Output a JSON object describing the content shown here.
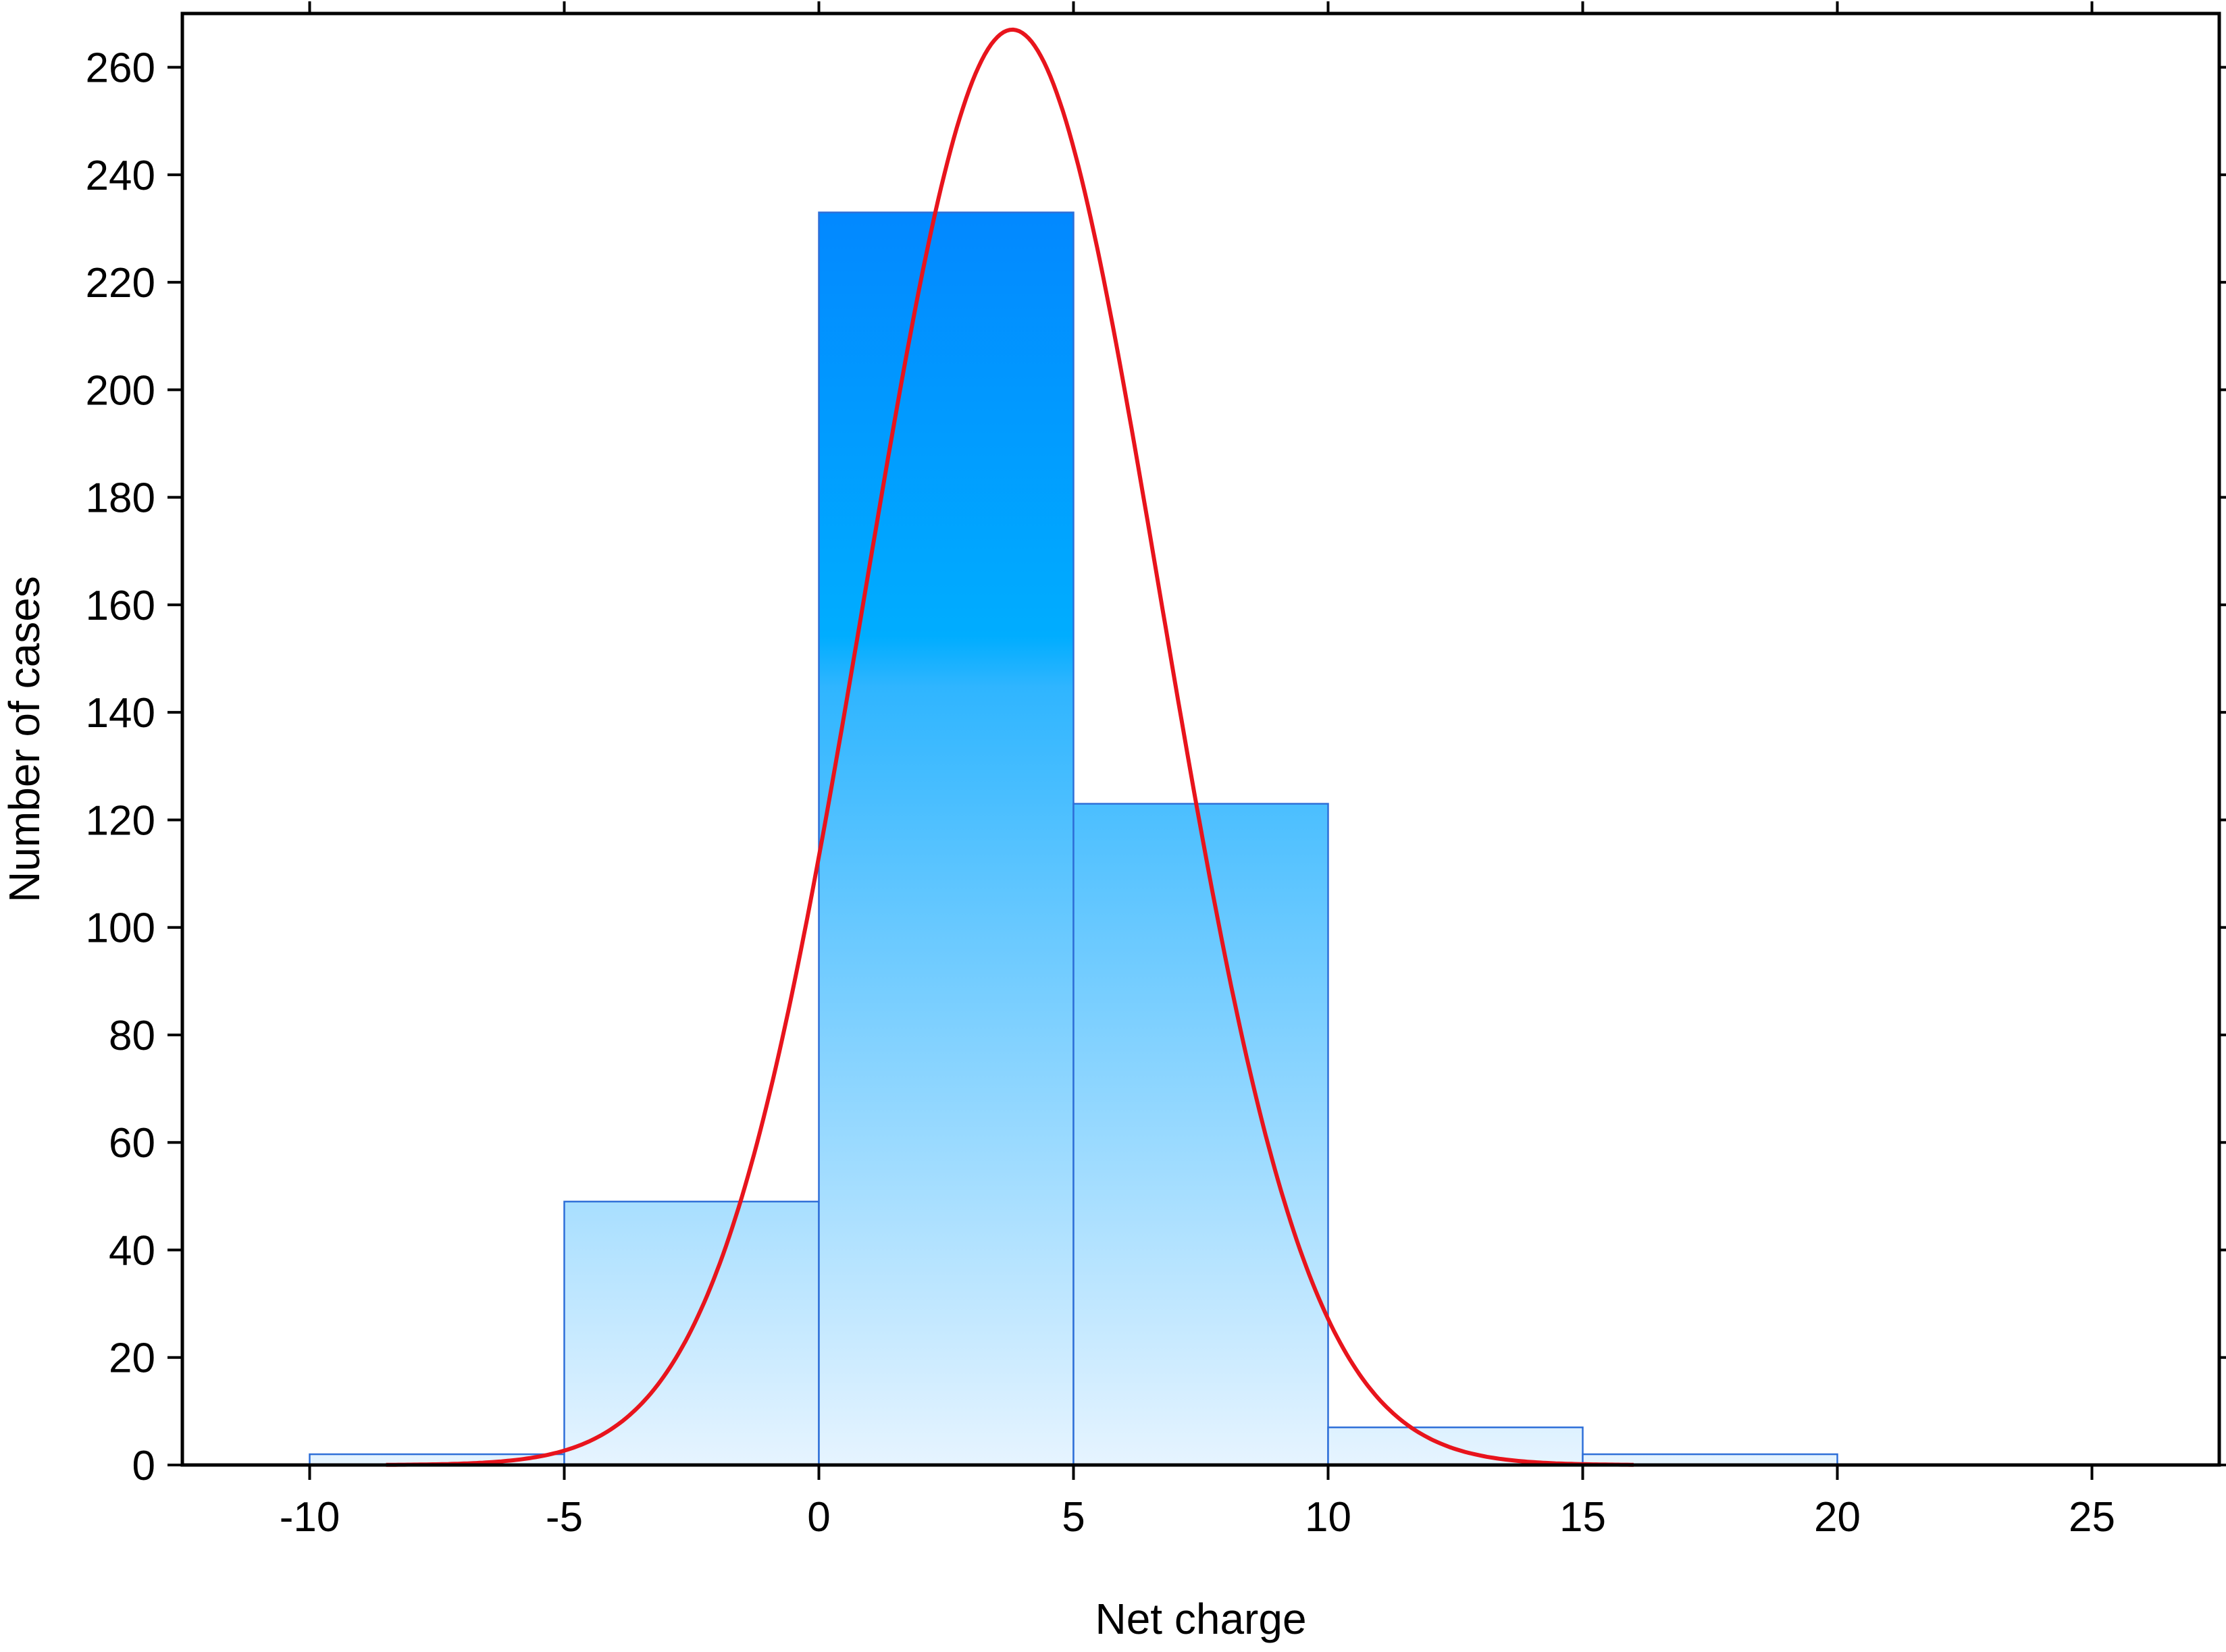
{
  "chart_data": {
    "type": "bar",
    "subtype": "histogram-with-normal-fit",
    "title": "",
    "xlabel": "Net charge",
    "ylabel": "Number of cases",
    "xlim": [
      -12.5,
      27.5
    ],
    "ylim": [
      0,
      270
    ],
    "x_ticks": [
      -10,
      -5,
      0,
      5,
      10,
      15,
      20,
      25
    ],
    "y_ticks": [
      0,
      20,
      40,
      60,
      80,
      100,
      120,
      140,
      160,
      180,
      200,
      220,
      240,
      260
    ],
    "bins": [
      {
        "from": -10,
        "to": -5,
        "count": 2
      },
      {
        "from": -5,
        "to": 0,
        "count": 49
      },
      {
        "from": 0,
        "to": 5,
        "count": 233
      },
      {
        "from": 5,
        "to": 10,
        "count": 123
      },
      {
        "from": 10,
        "to": 15,
        "count": 7
      },
      {
        "from": 15,
        "to": 20,
        "count": 2
      }
    ],
    "fit_curve": {
      "type": "normal",
      "mean": 3.8,
      "sd": 2.9,
      "peak": 267,
      "x_range": [
        -8.5,
        16
      ]
    },
    "grid": false,
    "legend": "none",
    "colors": {
      "bar_top": "#0288ff",
      "bar_mid": "#00adff",
      "bar_bottom": "#e6f4ff",
      "bar_edge": "#2e6fd8",
      "curve": "#e8141c",
      "axis": "#000000"
    }
  }
}
